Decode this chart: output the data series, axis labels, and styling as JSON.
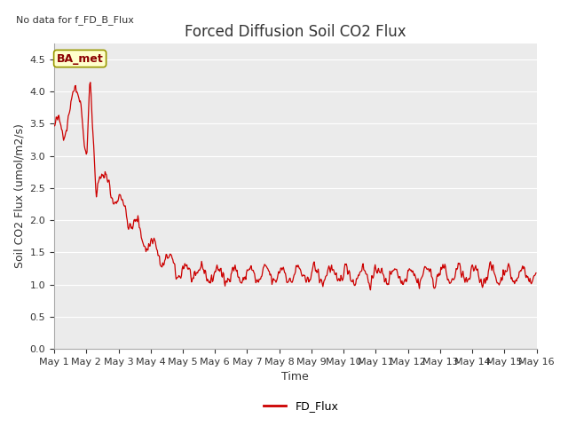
{
  "title": "Forced Diffusion Soil CO2 Flux",
  "no_data_label": "No data for f_FD_B_Flux",
  "ba_met_label": "BA_met",
  "xlabel": "Time",
  "ylabel": "Soil CO2 Flux (umol/m2/s)",
  "legend_label": "FD_Flux",
  "line_color": "#cc0000",
  "ylim": [
    0.0,
    4.75
  ],
  "yticks": [
    0.0,
    0.5,
    1.0,
    1.5,
    2.0,
    2.5,
    3.0,
    3.5,
    4.0,
    4.5
  ],
  "fig_bg_color": "#ffffff",
  "plot_bg_color": "#ebebeb",
  "grid_color": "#ffffff",
  "title_fontsize": 12,
  "axis_fontsize": 9,
  "tick_fontsize": 8,
  "n_days": 15,
  "points_per_day": 48
}
